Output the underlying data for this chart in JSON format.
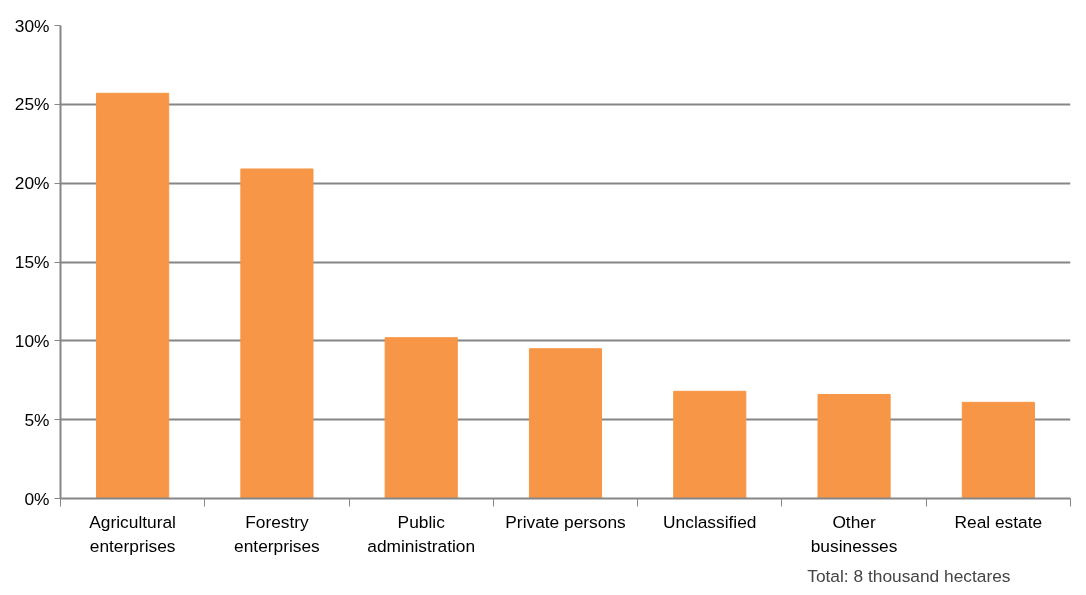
{
  "chart_data": {
    "type": "bar",
    "categories": [
      "Agricultural enterprises",
      "Forestry enterprises",
      "Public administration",
      "Private persons",
      "Unclassified",
      "Other businesses",
      "Real estate"
    ],
    "values": [
      25.7,
      20.9,
      10.2,
      9.5,
      6.8,
      6.6,
      6.1
    ],
    "color": "#f79646",
    "ylim": [
      0,
      30
    ],
    "yticks": [
      {
        "value": 0,
        "label": "0%"
      },
      {
        "value": 5,
        "label": "5%"
      },
      {
        "value": 10,
        "label": "10%"
      },
      {
        "value": 15,
        "label": "15%"
      },
      {
        "value": 20,
        "label": "20%"
      },
      {
        "value": 25,
        "label": "25%"
      },
      {
        "value": 30,
        "label": "30%"
      }
    ],
    "grid": "y",
    "annotations": [
      "Total: 8 thousand hectares"
    ]
  }
}
